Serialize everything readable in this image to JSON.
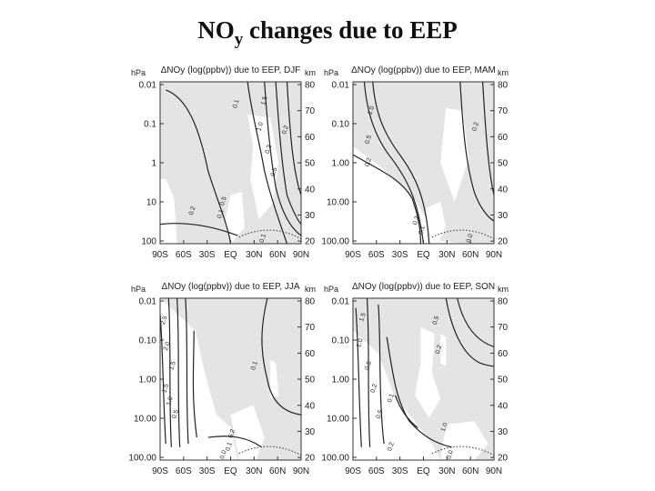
{
  "page": {
    "title_main": "NO",
    "title_sub": "y",
    "title_rest": " changes due to EEP"
  },
  "chart_data": [
    {
      "type": "contour",
      "title": "ΔNOy (log(ppbv)) due to EEP, DJF",
      "left_axis_label": "hPa",
      "right_axis_label": "km",
      "pressure_ticks": [
        "0.01",
        "0.1",
        "1",
        "10",
        "100"
      ],
      "altitude_ticks": [
        "80",
        "70",
        "60",
        "50",
        "40",
        "30",
        "20"
      ],
      "lat_ticks": [
        "90S",
        "60S",
        "30S",
        "EQ",
        "30N",
        "60N",
        "90N"
      ],
      "contour_labels": [
        "0.1",
        "0.2",
        "0.5",
        "1.0",
        "1.5",
        "0.2",
        "0.5",
        "0.2",
        "0.1",
        "0.1"
      ]
    },
    {
      "type": "contour",
      "title": "ΔNOy (log(ppbv)) due to EEP, MAM",
      "left_axis_label": "hPa",
      "right_axis_label": "km",
      "pressure_ticks": [
        "0.01",
        "0.10",
        "1.00",
        "10.00",
        "100.00"
      ],
      "altitude_ticks": [
        "80",
        "70",
        "60",
        "50",
        "40",
        "30",
        "20"
      ],
      "lat_ticks": [
        "90S",
        "60S",
        "30S",
        "EQ",
        "30N",
        "60N",
        "90N"
      ],
      "contour_labels": [
        "1.0",
        "0.5",
        "0.2",
        "0.2",
        "0.1",
        "0.2",
        "0.0"
      ]
    },
    {
      "type": "contour",
      "title": "ΔNOy (log(ppbv)) due to EEP, JJA",
      "left_axis_label": "hPa",
      "right_axis_label": "km",
      "pressure_ticks": [
        "0.01",
        "0.10",
        "1.00",
        "10.00",
        "100.00"
      ],
      "altitude_ticks": [
        "80",
        "70",
        "60",
        "50",
        "40",
        "30",
        "20"
      ],
      "lat_ticks": [
        "90S",
        "60S",
        "30S",
        "EQ",
        "30N",
        "60N",
        "90N"
      ],
      "contour_labels": [
        "2.5",
        "2.0",
        "1.5",
        "1.5",
        "1.0",
        "0.5",
        "0.1",
        "0.2",
        "0.1",
        "0.0"
      ]
    },
    {
      "type": "contour",
      "title": "ΔNOy (log(ppbv)) due to EEP, SON",
      "left_axis_label": "hPa",
      "right_axis_label": "km",
      "pressure_ticks": [
        "0.01",
        "0.10",
        "1.00",
        "10.00",
        "100.00"
      ],
      "altitude_ticks": [
        "80",
        "70",
        "60",
        "50",
        "40",
        "30",
        "20"
      ],
      "lat_ticks": [
        "90S",
        "60S",
        "30S",
        "EQ",
        "30N",
        "60N",
        "90N"
      ],
      "contour_labels": [
        "1.5",
        "1.0",
        "0.5",
        "0.2",
        "0.1",
        "1.0",
        "0.5",
        "0.2",
        "0.5",
        "0.2",
        "0.0"
      ]
    }
  ]
}
